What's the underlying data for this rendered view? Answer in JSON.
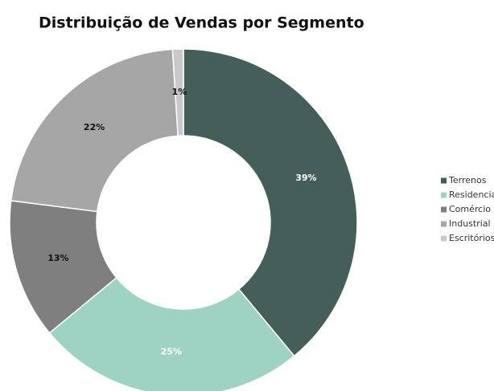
{
  "chart_data": {
    "type": "donut",
    "title": "Distribuição de Vendas por Segmento",
    "categories": [
      "Terrenos",
      "Residencial",
      "Comércio",
      "Industrial",
      "Escritórios"
    ],
    "values": [
      39,
      25,
      13,
      22,
      1
    ],
    "value_labels": [
      "39%",
      "25%",
      "13%",
      "22%",
      "1%"
    ],
    "colors": [
      "#445f5a",
      "#9ed3c4",
      "#7f7f7f",
      "#a6a6a6",
      "#c9c9c9"
    ],
    "legend": "right"
  }
}
